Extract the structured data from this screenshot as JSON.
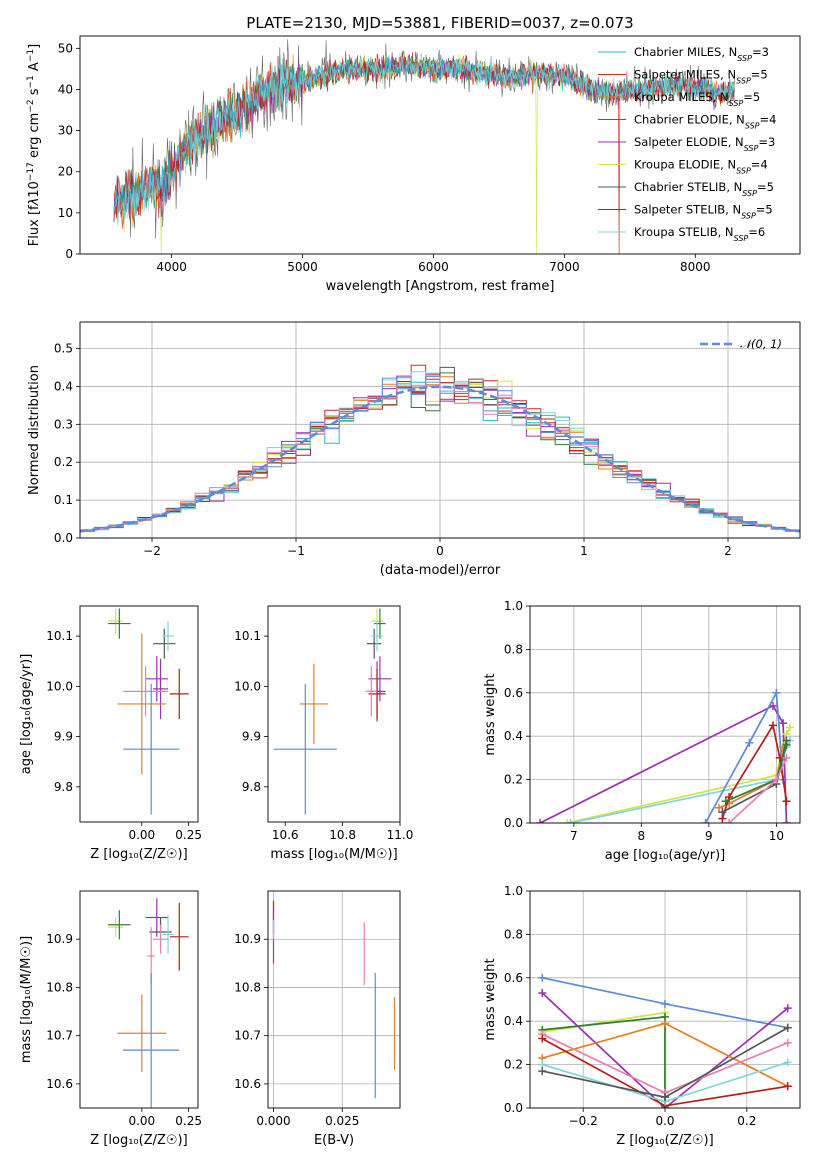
{
  "figure": {
    "title": "PLATE=2130, MJD=53881, FIBERID=0037, z=0.073"
  },
  "colors": {
    "cb_miles": "#17becf",
    "sp_miles": "#d62728",
    "kr_miles": "#e67e22",
    "cb_elodie": "#2e7d32",
    "sp_elodie": "#9b30b0",
    "kr_elodie": "#d4e34a",
    "cb_stelib": "#555555",
    "sp_stelib": "#b71c1c",
    "kr_stelib": "#7fd6d9",
    "gauss": "#5b8bd9",
    "blue": "#5b8bd9",
    "pink": "#ea7fb2"
  },
  "chart_data": [
    {
      "id": "spectrum",
      "type": "line",
      "xlabel": "wavelength [Angstrom, rest frame]",
      "ylabel": "Flux [f<tspan font-style='italic'>λ</tspan>10<tspan baseline-shift='super' font-size='9'>−17</tspan> erg cm<tspan baseline-shift='super' font-size='9'>−2</tspan> s<tspan baseline-shift='super' font-size='9'>−1</tspan> A<tspan baseline-shift='super' font-size='9'>−1</tspan>]",
      "xlim": [
        3300,
        8800
      ],
      "ylim": [
        0,
        53
      ],
      "xticks": [
        4000,
        5000,
        6000,
        7000,
        8000
      ],
      "yticks": [
        0,
        10,
        20,
        30,
        40,
        50
      ],
      "envelope": {
        "x": [
          3560,
          3700,
          3850,
          3950,
          4050,
          4150,
          4300,
          4400,
          4500,
          4600,
          4700,
          4800,
          4900,
          5000,
          5200,
          5400,
          5600,
          5800,
          6000,
          6200,
          6400,
          6600,
          6800,
          7000,
          7200,
          7400,
          7600,
          7800,
          8000,
          8200,
          8300
        ],
        "y": [
          12,
          14,
          17,
          16,
          23,
          28,
          30,
          33,
          35,
          37,
          39,
          41,
          42,
          42,
          44,
          45,
          45,
          46,
          45,
          45,
          44,
          43,
          44,
          43,
          40,
          39,
          40,
          41,
          41,
          39,
          40
        ]
      },
      "legend": [
        {
          "label": "Chabrier MILES, N",
          "sub": "SSP",
          "n": "=3",
          "color_key": "cb_miles"
        },
        {
          "label": "Salpeter MILES, N",
          "sub": "SSP",
          "n": "=5",
          "color_key": "sp_miles"
        },
        {
          "label": "Kroupa MILES, N",
          "sub": "SSP",
          "n": "=5",
          "color_key": "kr_miles"
        },
        {
          "label": "Chabrier ELODIE, N",
          "sub": "SSP",
          "n": "=4",
          "color_key": "cb_elodie"
        },
        {
          "label": "Salpeter ELODIE, N",
          "sub": "SSP",
          "n": "=3",
          "color_key": "sp_elodie"
        },
        {
          "label": "Kroupa ELODIE, N",
          "sub": "SSP",
          "n": "=4",
          "color_key": "kr_elodie"
        },
        {
          "label": "Chabrier STELIB, N",
          "sub": "SSP",
          "n": "=5",
          "color_key": "cb_stelib"
        },
        {
          "label": "Salpeter STELIB, N",
          "sub": "SSP",
          "n": "=5",
          "color_key": "sp_stelib"
        },
        {
          "label": "Kroupa STELIB, N",
          "sub": "SSP",
          "n": "=6",
          "color_key": "kr_stelib"
        }
      ]
    },
    {
      "id": "residuals",
      "type": "area",
      "xlabel": "(data-model)/error",
      "ylabel": "Normed distribution",
      "xlim": [
        -2.5,
        2.5
      ],
      "ylim": [
        0,
        0.57
      ],
      "xticks": [
        -2,
        -1,
        0,
        1,
        2
      ],
      "xticklabels": [
        "−2",
        "−1",
        "0",
        "1",
        "2"
      ],
      "yticks": [
        0.0,
        0.1,
        0.2,
        0.3,
        0.4,
        0.5
      ],
      "yticklabels": [
        "0.0",
        "0.1",
        "0.2",
        "0.3",
        "0.4",
        "0.5"
      ],
      "grid": true,
      "legend": "N(0, 1)",
      "bin_width": 0.1
    },
    {
      "id": "age_vs_Z",
      "type": "scatter",
      "xlabel": "Z [log₁₀(Z/Z☉)]",
      "ylabel": "age  [log₁₀(age/yr)]",
      "xlim": [
        -0.33,
        0.3
      ],
      "ylim": [
        9.73,
        10.16
      ],
      "xticks": [
        0.0,
        0.25
      ],
      "xticklabels": [
        "0.00",
        "0.25"
      ],
      "yticks": [
        9.8,
        9.9,
        10.0,
        10.1
      ],
      "yticklabels": [
        "9.8",
        "9.9",
        "10.0",
        "10.1"
      ],
      "points": [
        {
          "x": -0.14,
          "y": 10.13,
          "xe": 0.04,
          "ye": 0.025,
          "c": "kr_elodie"
        },
        {
          "x": -0.12,
          "y": 10.125,
          "xe": 0.06,
          "ye": 0.03,
          "c": "cb_elodie"
        },
        {
          "x": 0.12,
          "y": 10.085,
          "xe": 0.06,
          "ye": 0.03,
          "c": "cb_stelib"
        },
        {
          "x": 0.14,
          "y": 10.1,
          "xe": 0.03,
          "ye": 0.03,
          "c": "kr_stelib"
        },
        {
          "x": 0.08,
          "y": 10.015,
          "xe": 0.06,
          "ye": 0.045,
          "c": "sp_elodie"
        },
        {
          "x": 0.1,
          "y": 9.995,
          "xe": 0.04,
          "ye": 0.06,
          "c": "sp_elodie"
        },
        {
          "x": 0.2,
          "y": 9.985,
          "xe": 0.05,
          "ye": 0.05,
          "c": "sp_stelib"
        },
        {
          "x": 0.02,
          "y": 9.99,
          "xe": 0.12,
          "ye": 0.05,
          "c": "pink"
        },
        {
          "x": 0.0,
          "y": 9.965,
          "xe": 0.13,
          "ye": 0.14,
          "c": "kr_miles"
        },
        {
          "x": 0.05,
          "y": 9.875,
          "xe": 0.15,
          "ye": 0.13,
          "c": "blue"
        }
      ]
    },
    {
      "id": "age_vs_mass",
      "type": "scatter",
      "xlabel": "mass [log₁₀(M/M☉)]",
      "ylabel": "",
      "xlim": [
        10.54,
        11.0
      ],
      "ylim": [
        9.73,
        10.16
      ],
      "xticks": [
        10.6,
        10.8,
        11.0
      ],
      "xticklabels": [
        "10.6",
        "10.8",
        "11.0"
      ],
      "yticks": [
        9.8,
        9.9,
        10.0,
        10.1
      ],
      "yticklabels": [
        "9.8",
        "9.9",
        "10.0",
        "10.1"
      ],
      "points": [
        {
          "x": 10.92,
          "y": 10.13,
          "xe": 0.02,
          "ye": 0.025,
          "c": "kr_elodie"
        },
        {
          "x": 10.93,
          "y": 10.125,
          "xe": 0.02,
          "ye": 0.03,
          "c": "cb_elodie"
        },
        {
          "x": 10.91,
          "y": 10.085,
          "xe": 0.025,
          "ye": 0.03,
          "c": "cb_stelib"
        },
        {
          "x": 10.92,
          "y": 10.1,
          "xe": 0.02,
          "ye": 0.03,
          "c": "kr_stelib"
        },
        {
          "x": 10.93,
          "y": 10.015,
          "xe": 0.04,
          "ye": 0.045,
          "c": "sp_elodie"
        },
        {
          "x": 10.92,
          "y": 9.99,
          "xe": 0.03,
          "ye": 0.06,
          "c": "sp_elodie"
        },
        {
          "x": 10.92,
          "y": 9.985,
          "xe": 0.03,
          "ye": 0.05,
          "c": "sp_stelib"
        },
        {
          "x": 10.9,
          "y": 9.99,
          "xe": 0.02,
          "ye": 0.05,
          "c": "pink"
        },
        {
          "x": 10.7,
          "y": 9.965,
          "xe": 0.05,
          "ye": 0.08,
          "c": "kr_miles"
        },
        {
          "x": 10.67,
          "y": 9.875,
          "xe": 0.11,
          "ye": 0.13,
          "c": "blue"
        }
      ]
    },
    {
      "id": "weight_vs_age",
      "type": "line",
      "xlabel": "age  [log₁₀(age/yr)]",
      "ylabel": "mass weight",
      "xlim": [
        6.35,
        10.35
      ],
      "ylim": [
        0,
        1.0
      ],
      "xticks": [
        7,
        8,
        9,
        10
      ],
      "xticklabels": [
        "7",
        "8",
        "9",
        "10"
      ],
      "yticks": [
        0.0,
        0.2,
        0.4,
        0.6,
        0.8,
        1.0
      ],
      "yticklabels": [
        "0.0",
        "0.2",
        "0.4",
        "0.6",
        "0.8",
        "1.0"
      ],
      "grid": true,
      "series": [
        {
          "c": "sp_elodie",
          "x": [
            6.5,
            9.95,
            10.1,
            10.15
          ],
          "y": [
            0.0,
            0.54,
            0.46,
            0.0
          ]
        },
        {
          "c": "kr_elodie",
          "x": [
            6.9,
            10.0,
            10.15,
            10.2
          ],
          "y": [
            0.0,
            0.22,
            0.41,
            0.44
          ]
        },
        {
          "c": "kr_stelib",
          "x": [
            6.95,
            10.0,
            10.15,
            10.2
          ],
          "y": [
            0.0,
            0.2,
            0.35,
            0.38
          ]
        },
        {
          "c": "blue",
          "x": [
            8.95,
            9.6,
            10.0,
            10.1
          ],
          "y": [
            0.0,
            0.37,
            0.6,
            0.2
          ]
        },
        {
          "c": "kr_miles",
          "x": [
            9.15,
            9.3,
            10.0,
            10.1
          ],
          "y": [
            0.07,
            0.09,
            0.2,
            0.35
          ]
        },
        {
          "c": "sp_stelib",
          "x": [
            9.2,
            9.3,
            9.95,
            10.05,
            10.15
          ],
          "y": [
            0.02,
            0.12,
            0.45,
            0.3,
            0.1
          ]
        },
        {
          "c": "cb_stelib",
          "x": [
            9.2,
            10.0,
            10.15
          ],
          "y": [
            0.05,
            0.18,
            0.38
          ]
        },
        {
          "c": "cb_elodie",
          "x": [
            9.25,
            10.0,
            10.15
          ],
          "y": [
            0.1,
            0.2,
            0.36
          ]
        },
        {
          "c": "pink",
          "x": [
            9.3,
            10.0,
            10.15
          ],
          "y": [
            0.0,
            0.2,
            0.3
          ]
        }
      ]
    },
    {
      "id": "mass_vs_Z",
      "type": "scatter",
      "xlabel": "Z [log₁₀(Z/Z☉)]",
      "ylabel": "mass [log₁₀(M/M☉)]",
      "xlim": [
        -0.33,
        0.3
      ],
      "ylim": [
        10.55,
        11.0
      ],
      "xticks": [
        0.0,
        0.25
      ],
      "xticklabels": [
        "0.00",
        "0.25"
      ],
      "yticks": [
        10.6,
        10.7,
        10.8,
        10.9
      ],
      "yticklabels": [
        "10.6",
        "10.7",
        "10.8",
        "10.9"
      ],
      "points": [
        {
          "x": -0.14,
          "y": 10.925,
          "xe": 0.04,
          "ye": 0.02,
          "c": "kr_elodie"
        },
        {
          "x": -0.12,
          "y": 10.93,
          "xe": 0.06,
          "ye": 0.03,
          "c": "cb_elodie"
        },
        {
          "x": 0.08,
          "y": 10.945,
          "xe": 0.06,
          "ye": 0.04,
          "c": "sp_elodie"
        },
        {
          "x": 0.1,
          "y": 10.915,
          "xe": 0.06,
          "ye": 0.03,
          "c": "cb_stelib"
        },
        {
          "x": 0.14,
          "y": 10.91,
          "xe": 0.03,
          "ye": 0.04,
          "c": "kr_stelib"
        },
        {
          "x": 0.2,
          "y": 10.905,
          "xe": 0.05,
          "ye": 0.07,
          "c": "sp_stelib"
        },
        {
          "x": 0.1,
          "y": 10.9,
          "xe": 0.04,
          "ye": 0.03,
          "c": "pink"
        },
        {
          "x": 0.05,
          "y": 10.865,
          "xe": 0.02,
          "ye": 0.06,
          "c": "pink"
        },
        {
          "x": 0.0,
          "y": 10.705,
          "xe": 0.13,
          "ye": 0.08,
          "c": "kr_miles"
        },
        {
          "x": 0.05,
          "y": 10.67,
          "xe": 0.15,
          "ye": 0.16,
          "c": "blue"
        }
      ]
    },
    {
      "id": "mass_vs_ebv",
      "type": "scatter",
      "xlabel": "E(B-V)",
      "ylabel": "",
      "xlim": [
        -0.002,
        0.046
      ],
      "ylim": [
        10.55,
        11.0
      ],
      "xticks": [
        0.0,
        0.025
      ],
      "xticklabels": [
        "0.000",
        "0.025"
      ],
      "yticks": [
        10.6,
        10.7,
        10.8,
        10.9
      ],
      "yticklabels": [
        "10.6",
        "10.7",
        "10.8",
        "10.9"
      ],
      "grid": true,
      "points": [
        {
          "x": 0.0,
          "y": 10.945,
          "xe": 0,
          "ye": 0.035,
          "c": "sp_stelib"
        },
        {
          "x": 0.0,
          "y": 10.91,
          "xe": 0,
          "ye": 0.06,
          "c": "sp_elodie"
        },
        {
          "x": 0.0,
          "y": 10.92,
          "xe": 0,
          "ye": 0.02,
          "c": "kr_stelib"
        },
        {
          "x": 0.033,
          "y": 10.87,
          "xe": 0,
          "ye": 0.065,
          "c": "pink"
        },
        {
          "x": 0.037,
          "y": 10.7,
          "xe": 0,
          "ye": 0.13,
          "c": "blue"
        },
        {
          "x": 0.044,
          "y": 10.705,
          "xe": 0,
          "ye": 0.075,
          "c": "kr_miles"
        }
      ]
    },
    {
      "id": "weight_vs_Z",
      "type": "line",
      "xlabel": "Z [log₁₀(Z/Z☉)]",
      "ylabel": "mass weight",
      "xlim": [
        -0.33,
        0.33
      ],
      "ylim": [
        0,
        1.0
      ],
      "xticks": [
        -0.2,
        0.0,
        0.2
      ],
      "xticklabels": [
        "−0.2",
        "0.0",
        "0.2"
      ],
      "yticks": [
        0.0,
        0.2,
        0.4,
        0.6,
        0.8,
        1.0
      ],
      "yticklabels": [
        "0.0",
        "0.2",
        "0.4",
        "0.6",
        "0.8",
        "1.0"
      ],
      "grid": true,
      "series": [
        {
          "c": "blue",
          "x": [
            -0.3,
            0.0,
            0.3
          ],
          "y": [
            0.6,
            0.48,
            0.37
          ]
        },
        {
          "c": "sp_elodie",
          "x": [
            -0.3,
            0.0,
            0.3
          ],
          "y": [
            0.53,
            0.0,
            0.46
          ]
        },
        {
          "c": "kr_elodie",
          "x": [
            -0.3,
            0.0,
            0.0
          ],
          "y": [
            0.35,
            0.44,
            0.0
          ]
        },
        {
          "c": "cb_elodie",
          "x": [
            -0.3,
            0.0,
            0.0
          ],
          "y": [
            0.36,
            0.42,
            0.0
          ]
        },
        {
          "c": "kr_miles",
          "x": [
            -0.3,
            0.0,
            0.3
          ],
          "y": [
            0.23,
            0.39,
            0.1
          ]
        },
        {
          "c": "pink",
          "x": [
            -0.3,
            0.0,
            0.3
          ],
          "y": [
            0.34,
            0.07,
            0.3
          ]
        },
        {
          "c": "sp_stelib",
          "x": [
            -0.3,
            0.0,
            0.3
          ],
          "y": [
            0.32,
            0.01,
            0.1
          ]
        },
        {
          "c": "kr_stelib",
          "x": [
            -0.3,
            0.0,
            0.3
          ],
          "y": [
            0.2,
            0.03,
            0.21
          ]
        },
        {
          "c": "cb_stelib",
          "x": [
            -0.3,
            0.0,
            0.3
          ],
          "y": [
            0.17,
            0.05,
            0.37
          ]
        }
      ]
    }
  ]
}
